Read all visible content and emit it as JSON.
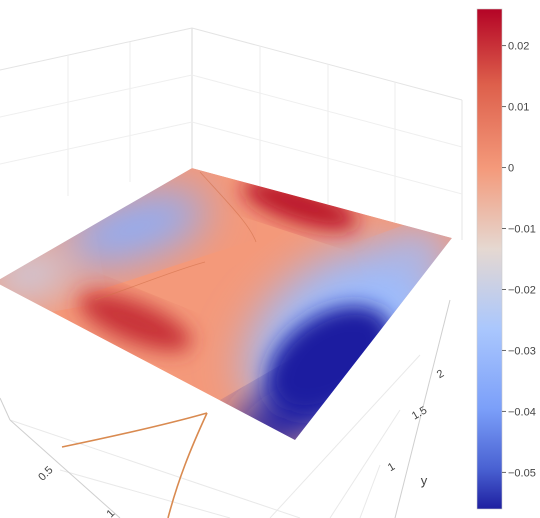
{
  "chart_data": {
    "type": "surface",
    "title": "",
    "axes": {
      "x": {
        "label": "",
        "ticks": [
          "0.5",
          "1"
        ]
      },
      "y": {
        "label": "y",
        "ticks": [
          "1",
          "1.5",
          "2"
        ]
      },
      "z": {
        "label": "",
        "ticks": []
      }
    },
    "colorbar": {
      "colorscale": "coolwarm",
      "min": -0.056,
      "max": 0.026,
      "ticks": [
        "0.02",
        "0.01",
        "0",
        "−0.01",
        "−0.02",
        "−0.03",
        "−0.04",
        "−0.05"
      ],
      "tick_values": [
        0.02,
        0.01,
        0,
        -0.01,
        -0.02,
        -0.03,
        -0.04,
        -0.05
      ]
    },
    "surface_corner_values": {
      "back": 0.005,
      "left": -0.02,
      "right": -0.03,
      "front": -0.056
    },
    "surface_feature_values": {
      "saddle_ridge": 0.0,
      "red_peak_back": 0.024,
      "red_peak_left": 0.02,
      "blue_trough_upper_left": -0.035
    },
    "colors": {
      "background": "#ffffff",
      "gridline": "#e2e2e2",
      "contour_projection": "#d98a50",
      "text": "#444444"
    }
  }
}
